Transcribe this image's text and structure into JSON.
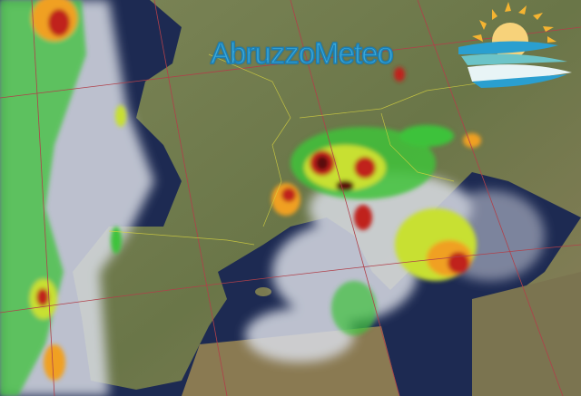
{
  "logo": {
    "text": "AbruzzoMeteo",
    "brand_color": "#3aa8d8",
    "sun_color": "#f5b431",
    "wave_colors": [
      "#2a9fd0",
      "#6cc4c8",
      "#e8f4f6"
    ]
  },
  "map": {
    "sea_color": "#1d2a52",
    "land_color": "#6d7a4c",
    "grid_line_color": "#b0404a",
    "border_color": "#d8d440",
    "storm_scale": [
      "#3ec23a",
      "#c8e030",
      "#f0a020",
      "#c0201a",
      "#5a0a0a"
    ]
  }
}
